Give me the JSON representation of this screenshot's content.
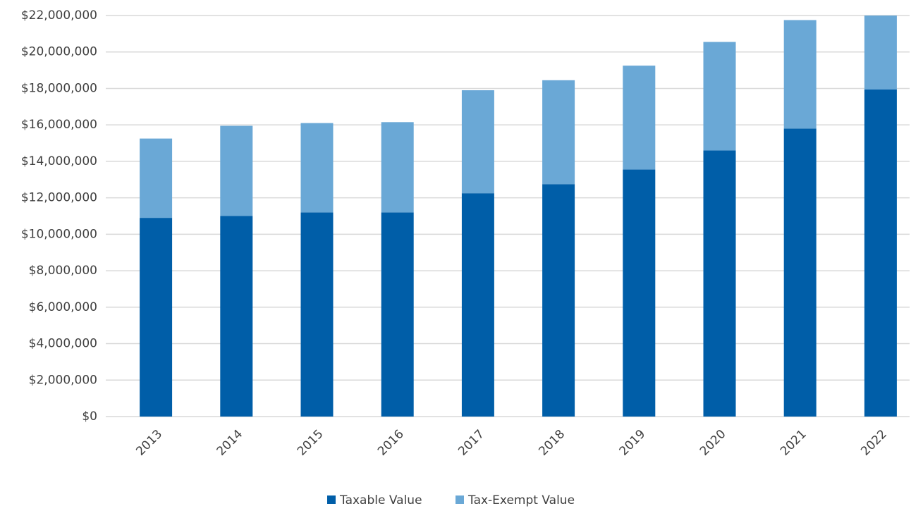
{
  "chart_data": {
    "type": "stacked_bar",
    "categories": [
      "2013",
      "2014",
      "2015",
      "2016",
      "2017",
      "2018",
      "2019",
      "2020",
      "2021",
      "2022"
    ],
    "series": [
      {
        "name": "Taxable Value",
        "color": "#005ea8",
        "values": [
          10900000,
          11000000,
          11200000,
          11200000,
          12250000,
          12750000,
          13550000,
          14600000,
          15800000,
          17950000
        ]
      },
      {
        "name": "Tax-Exempt Value",
        "color": "#6aa8d6",
        "values": [
          4350000,
          4950000,
          4900000,
          4950000,
          5650000,
          5700000,
          5700000,
          5950000,
          5950000,
          4050000
        ]
      }
    ],
    "ylim": [
      0,
      22000000
    ],
    "yticks": [
      {
        "value": 0,
        "label": "$0"
      },
      {
        "value": 2000000,
        "label": "$2,000,000"
      },
      {
        "value": 4000000,
        "label": "$4,000,000"
      },
      {
        "value": 6000000,
        "label": "$6,000,000"
      },
      {
        "value": 8000000,
        "label": "$8,000,000"
      },
      {
        "value": 10000000,
        "label": "$10,000,000"
      },
      {
        "value": 12000000,
        "label": "$12,000,000"
      },
      {
        "value": 14000000,
        "label": "$14,000,000"
      },
      {
        "value": 16000000,
        "label": "$16,000,000"
      },
      {
        "value": 18000000,
        "label": "$18,000,000"
      },
      {
        "value": 20000000,
        "label": "$20,000,000"
      },
      {
        "value": 22000000,
        "label": "$22,000,000"
      }
    ],
    "grid": true,
    "legend": "bottom"
  }
}
